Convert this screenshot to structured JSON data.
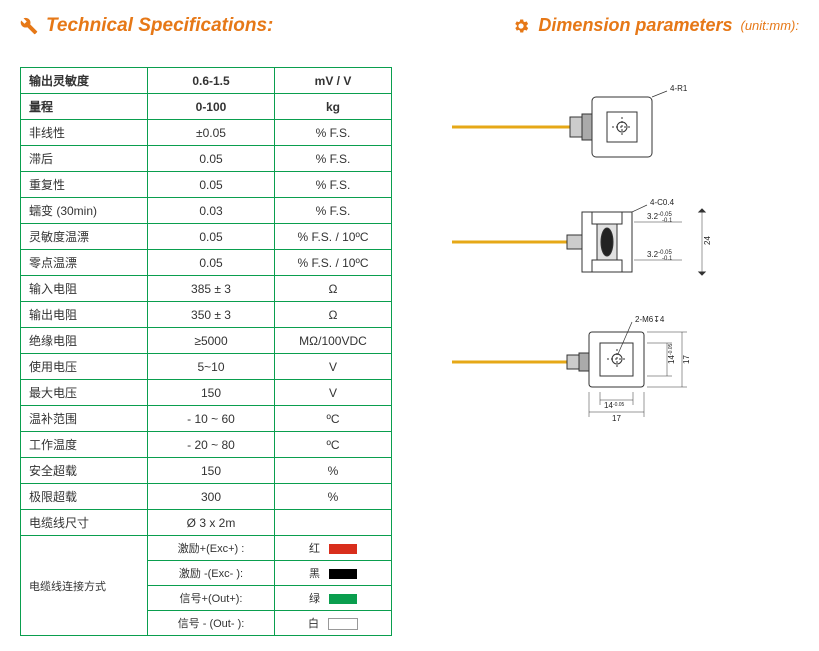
{
  "titles": {
    "spec": "Technical Specifications:",
    "dim": "Dimension parameters",
    "dim_unit": "(unit:mm):"
  },
  "spec_rows": [
    {
      "param": "输出灵敏度",
      "val": "0.6-1.5",
      "unit": "mV / V",
      "bold": true
    },
    {
      "param": "量程",
      "val": "0-100",
      "unit": "kg",
      "bold": true
    },
    {
      "param": "非线性",
      "val": "±0.05",
      "unit": "% F.S."
    },
    {
      "param": "滞后",
      "val": "0.05",
      "unit": "% F.S."
    },
    {
      "param": "重复性",
      "val": "0.05",
      "unit": "% F.S."
    },
    {
      "param": "蠕变 (30min)",
      "val": "0.03",
      "unit": "% F.S."
    },
    {
      "param": "灵敏度温漂",
      "val": "0.05",
      "unit": "% F.S. / 10ºC"
    },
    {
      "param": "零点温漂",
      "val": "0.05",
      "unit": "% F.S. / 10ºC"
    },
    {
      "param": "输入电阻",
      "val": "385 ± 3",
      "unit": "Ω"
    },
    {
      "param": "输出电阻",
      "val": "350 ± 3",
      "unit": "Ω"
    },
    {
      "param": "绝缘电阻",
      "val": "≥5000",
      "unit": "MΩ/100VDC"
    },
    {
      "param": "使用电压",
      "val": "5~10",
      "unit": "V"
    },
    {
      "param": "最大电压",
      "val": "150",
      "unit": "V"
    },
    {
      "param": "温补范围",
      "val": "- 10 ~ 60",
      "unit": "ºC"
    },
    {
      "param": "工作温度",
      "val": "- 20 ~ 80",
      "unit": "ºC"
    },
    {
      "param": "安全超载",
      "val": "150",
      "unit": "%"
    },
    {
      "param": "极限超载",
      "val": "300",
      "unit": "%"
    },
    {
      "param": "电缆线尺寸",
      "val": "Ø 3 x 2m",
      "unit": ""
    }
  ],
  "wiring": {
    "label": "电缆线连接方式",
    "rows": [
      {
        "sig": "激励+(Exc+) :",
        "color_label": "红",
        "swatch": "#d92e1c"
      },
      {
        "sig": "激励 -(Exc- ):",
        "color_label": "黑",
        "swatch": "#000000"
      },
      {
        "sig": "信号+(Out+):",
        "color_label": "绿",
        "swatch": "#0a9e4e"
      },
      {
        "sig": "信号 - (Out- ):",
        "color_label": "白",
        "swatch": "#ffffff"
      }
    ]
  },
  "diagram": {
    "labels": {
      "radius": "4-R1",
      "chamfer": "4-C0.4",
      "tol1": "3.2-0.05/-0.1",
      "height": "24",
      "thread": "2-M6↧4",
      "inner": "14-0.05/-0.08",
      "side17": "17",
      "side14": "14-0.05/-0.08"
    },
    "colors": {
      "cable": "#e6a817",
      "line": "#333333"
    }
  }
}
